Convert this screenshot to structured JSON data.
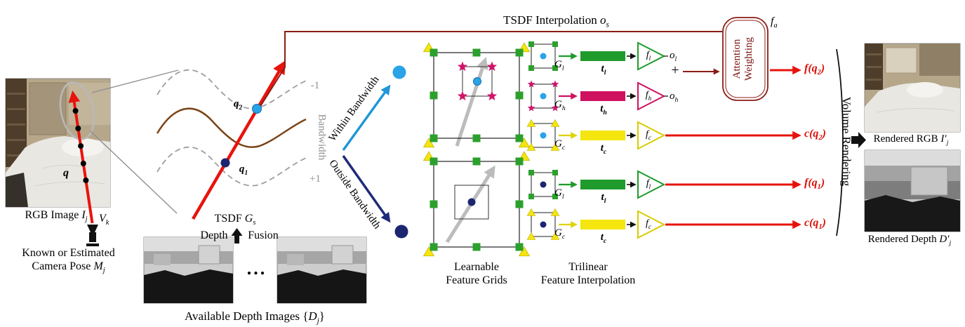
{
  "colors": {
    "ray_red": "#e8130c",
    "tsdf_line_maroon": "#8b1d15",
    "grid_fine_green": "#1f9b2c",
    "grid_high_magenta": "#cf1260",
    "grid_color_yellow": "#f4e60e",
    "within_cyan": "#2196d8",
    "outside_navy": "#1f2a78",
    "surface_brown": "#7a4418",
    "bandwidth_gray": "#9e9e9e"
  },
  "labels": {
    "rgb_image": "RGB Image *I_{j}*",
    "q": "q",
    "v_k": "V_{k}",
    "pose1": "Known or Estimated",
    "pose2": "Camera Pose *M_{j}*",
    "q1": "q_{1}",
    "q2": "q_{2}",
    "minus_one": "-1",
    "plus_one": "+1",
    "bandwidth": "Bandwidth",
    "tsdf_gs": "TSDF *G_{s}*",
    "depth": "Depth",
    "fusion": "Fusion",
    "ellipsis": "...",
    "available_depth_images": "Available Depth Images {*D_{j}*}",
    "within_bandwidth": "Within Bandwidth",
    "outside_bandwidth": "Outside Bandwidth",
    "learnable1": "Learnable",
    "learnable2": "Feature Grids",
    "trilinear1": "Trilinear",
    "trilinear2": "Feature Interpolation",
    "tsdf_interpolation": "TSDF Interpolation *o_{s}*",
    "attention_line_a": "Attention",
    "attention_line_b": "Weighting",
    "f_a": "f_{a}",
    "o_l": "o_{l}",
    "o_h": "o_{h}",
    "plus": "+",
    "f_q2": "f(q_{2})",
    "c_q2": "c(q_{2})",
    "f_q1": "f(q_{1})",
    "c_q1": "c(q_{1})",
    "volume_rendering": "Volume Rendering",
    "rendered_rgb": "Rendered RGB *I′_{j}*",
    "rendered_depth": "Rendered Depth *D′_{j}*"
  },
  "trilinear_rows": [
    {
      "grid": "G_{l}",
      "vector": "t_{l}",
      "mlp": "f_{l}"
    },
    {
      "grid": "G_{h}",
      "vector": "t_{h}",
      "mlp": "f_{h}"
    },
    {
      "grid": "G_{c}",
      "vector": "t_{c}",
      "mlp": "f_{c}"
    },
    {
      "grid": "G_{l}",
      "vector": "t_{l}",
      "mlp": "f_{l}"
    },
    {
      "grid": "G_{c}",
      "vector": "t_{c}",
      "mlp": "f_{c}"
    }
  ]
}
